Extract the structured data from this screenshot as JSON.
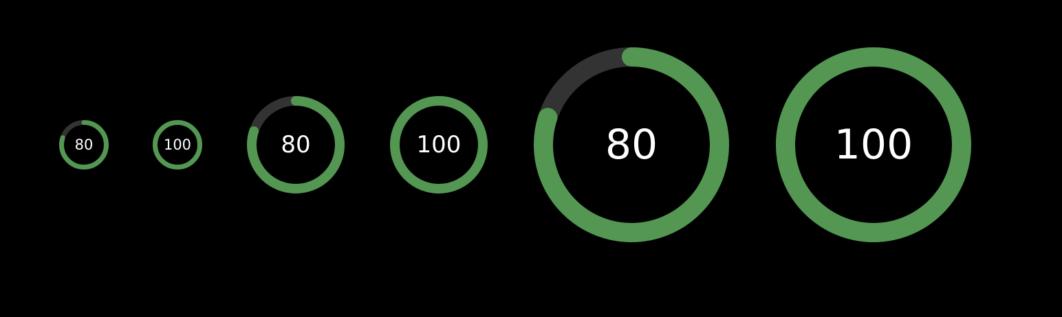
{
  "colors": {
    "background": "#000000",
    "track": "#333333",
    "progress": "#539753",
    "text": "#ffffff"
  },
  "rings": [
    {
      "value": 80,
      "label": "80",
      "size": "small"
    },
    {
      "value": 100,
      "label": "100",
      "size": "small"
    },
    {
      "value": 80,
      "label": "80",
      "size": "medium"
    },
    {
      "value": 100,
      "label": "100",
      "size": "medium"
    },
    {
      "value": 80,
      "label": "80",
      "size": "large"
    },
    {
      "value": 100,
      "label": "100",
      "size": "large"
    }
  ]
}
